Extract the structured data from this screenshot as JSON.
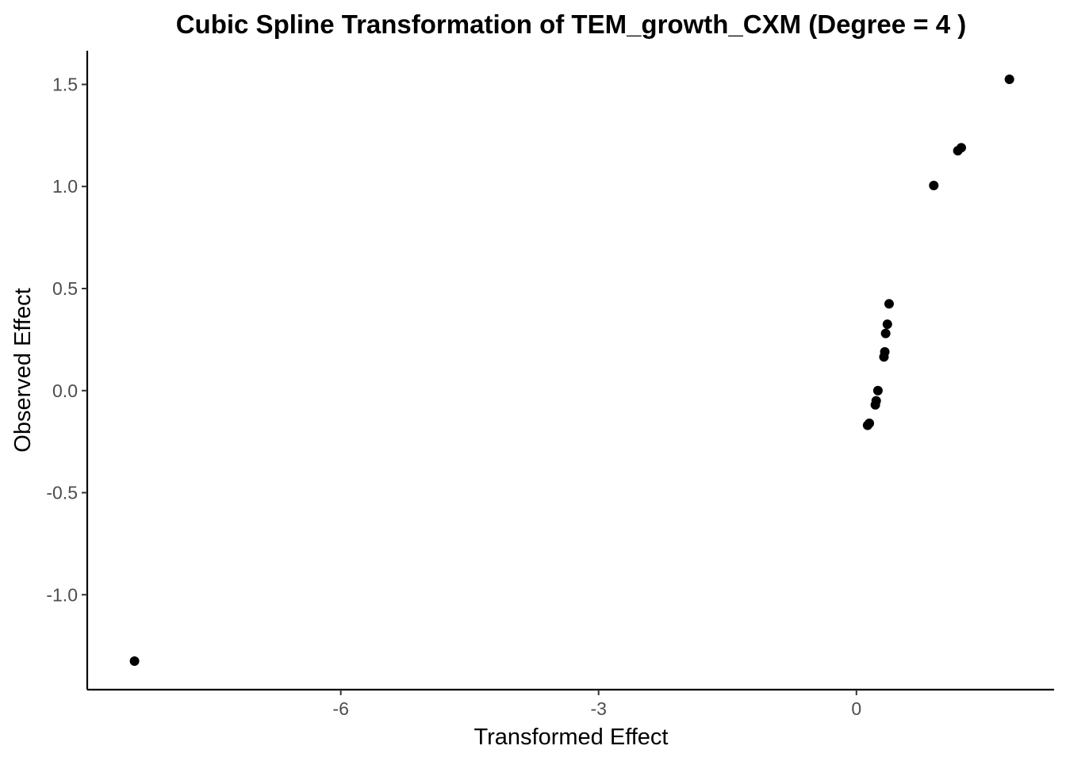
{
  "chart_data": {
    "type": "scatter",
    "title": "Cubic Spline Transformation of TEM_growth_CXM (Degree = 4 )",
    "xlabel": "Transformed Effect",
    "ylabel": "Observed Effect",
    "xlim": [
      -8.95,
      2.3
    ],
    "ylim": [
      -1.465,
      1.665
    ],
    "xticks": [
      {
        "value": -6,
        "label": "-6"
      },
      {
        "value": -3,
        "label": "-3"
      },
      {
        "value": 0,
        "label": "0"
      }
    ],
    "yticks": [
      {
        "value": 1.5,
        "label": "1.5"
      },
      {
        "value": 1.0,
        "label": "1.0"
      },
      {
        "value": 0.5,
        "label": "0.5"
      },
      {
        "value": 0.0,
        "label": "0.0"
      },
      {
        "value": -0.5,
        "label": "-0.5"
      },
      {
        "value": -1.0,
        "label": "-1.0"
      }
    ],
    "grid": false,
    "point_color": "#000000",
    "points": [
      {
        "x": -8.4,
        "y": -1.325
      },
      {
        "x": 0.13,
        "y": -0.17
      },
      {
        "x": 0.15,
        "y": -0.16
      },
      {
        "x": 0.22,
        "y": -0.07
      },
      {
        "x": 0.23,
        "y": -0.05
      },
      {
        "x": 0.25,
        "y": 0.0
      },
      {
        "x": 0.32,
        "y": 0.165
      },
      {
        "x": 0.33,
        "y": 0.19
      },
      {
        "x": 0.34,
        "y": 0.28
      },
      {
        "x": 0.36,
        "y": 0.325
      },
      {
        "x": 0.38,
        "y": 0.425
      },
      {
        "x": 0.9,
        "y": 1.005
      },
      {
        "x": 1.18,
        "y": 1.175
      },
      {
        "x": 1.22,
        "y": 1.19
      },
      {
        "x": 1.78,
        "y": 1.525
      }
    ]
  }
}
